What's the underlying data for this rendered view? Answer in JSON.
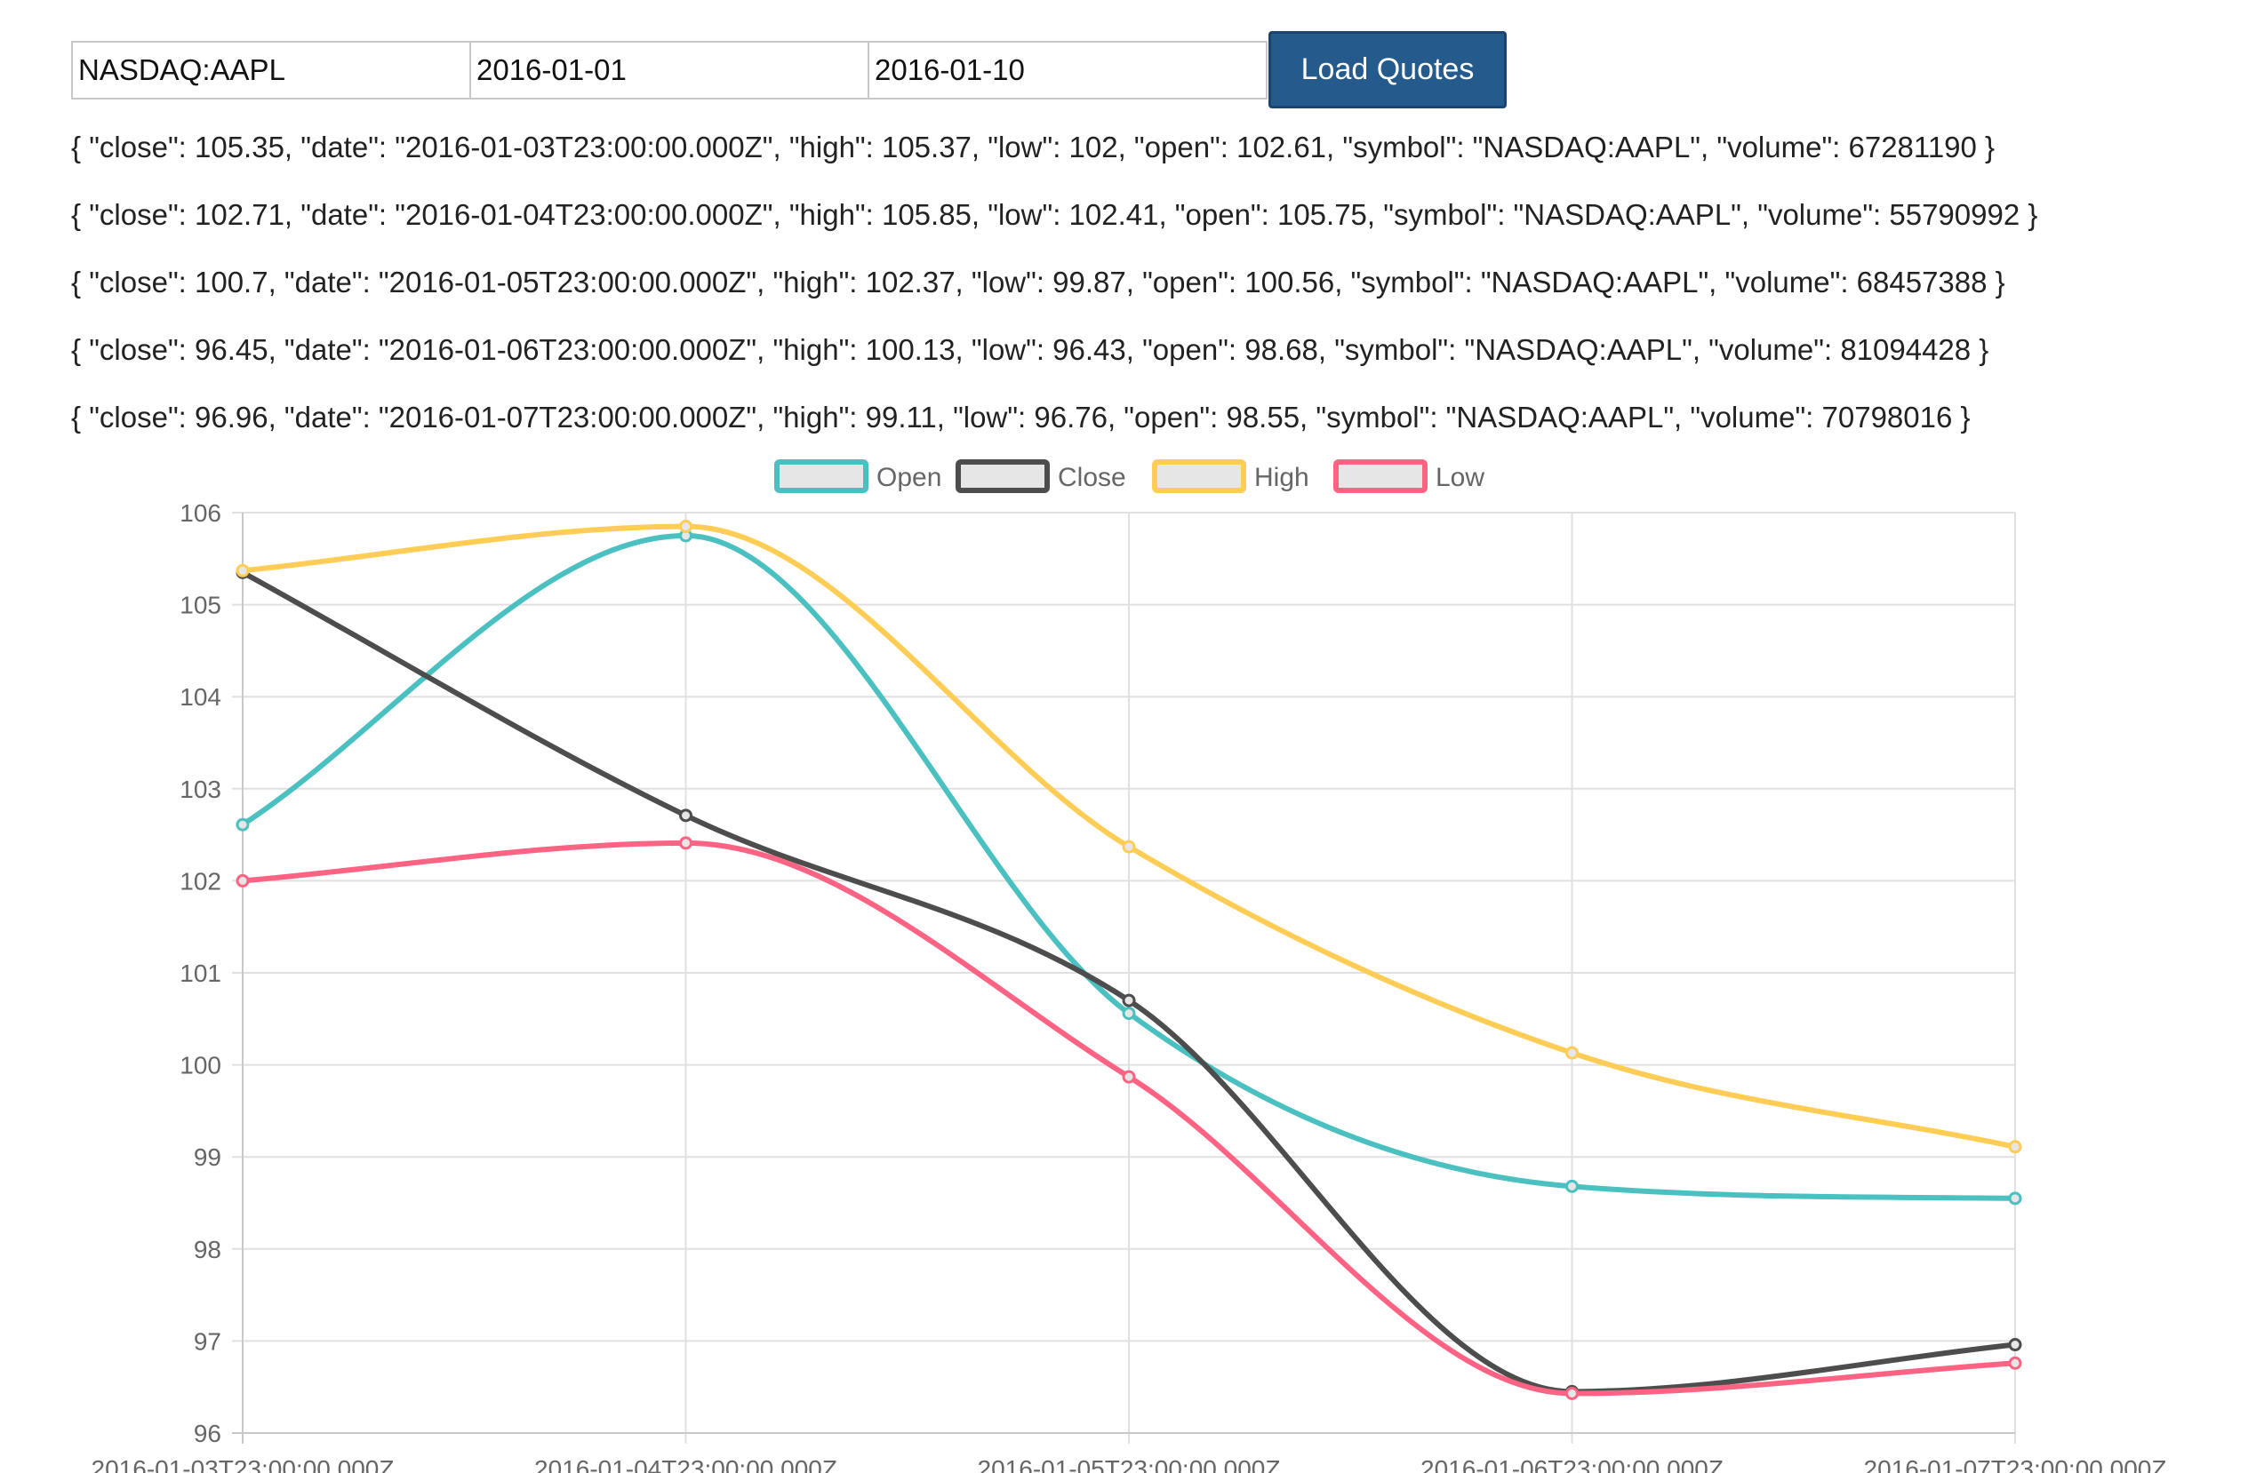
{
  "form": {
    "symbol_value": "NASDAQ:AAPL",
    "from_value": "2016-01-01",
    "to_value": "2016-01-10",
    "load_label": "Load Quotes"
  },
  "quotes": [
    "{ \"close\": 105.35, \"date\": \"2016-01-03T23:00:00.000Z\", \"high\": 105.37, \"low\": 102, \"open\": 102.61, \"symbol\": \"NASDAQ:AAPL\", \"volume\": 67281190 }",
    "{ \"close\": 102.71, \"date\": \"2016-01-04T23:00:00.000Z\", \"high\": 105.85, \"low\": 102.41, \"open\": 105.75, \"symbol\": \"NASDAQ:AAPL\", \"volume\": 55790992 }",
    "{ \"close\": 100.7, \"date\": \"2016-01-05T23:00:00.000Z\", \"high\": 102.37, \"low\": 99.87, \"open\": 100.56, \"symbol\": \"NASDAQ:AAPL\", \"volume\": 68457388 }",
    "{ \"close\": 96.45, \"date\": \"2016-01-06T23:00:00.000Z\", \"high\": 100.13, \"low\": 96.43, \"open\": 98.68, \"symbol\": \"NASDAQ:AAPL\", \"volume\": 81094428 }",
    "{ \"close\": 96.96, \"date\": \"2016-01-07T23:00:00.000Z\", \"high\": 99.11, \"low\": 96.76, \"open\": 98.55, \"symbol\": \"NASDAQ:AAPL\", \"volume\": 70798016 }"
  ],
  "chart_data": {
    "type": "line",
    "title": "",
    "xlabel": "",
    "ylabel": "",
    "categories": [
      "2016-01-03T23:00:00.000Z",
      "2016-01-04T23:00:00.000Z",
      "2016-01-05T23:00:00.000Z",
      "2016-01-06T23:00:00.000Z",
      "2016-01-07T23:00:00.000Z"
    ],
    "ylim": [
      96,
      106
    ],
    "yticks": [
      96,
      97,
      98,
      99,
      100,
      101,
      102,
      103,
      104,
      105,
      106
    ],
    "grid": true,
    "legend_position": "top",
    "smooth": true,
    "series": [
      {
        "name": "Open",
        "color": "#4bc0c0",
        "values": [
          102.61,
          105.75,
          100.56,
          98.68,
          98.55
        ]
      },
      {
        "name": "Close",
        "color": "#4d4d4d",
        "values": [
          105.35,
          102.71,
          100.7,
          96.45,
          96.96
        ]
      },
      {
        "name": "High",
        "color": "#ffcd56",
        "values": [
          105.37,
          105.85,
          102.37,
          100.13,
          99.11
        ]
      },
      {
        "name": "Low",
        "color": "#ff6384",
        "values": [
          102,
          102.41,
          99.87,
          96.43,
          96.76
        ]
      }
    ]
  }
}
